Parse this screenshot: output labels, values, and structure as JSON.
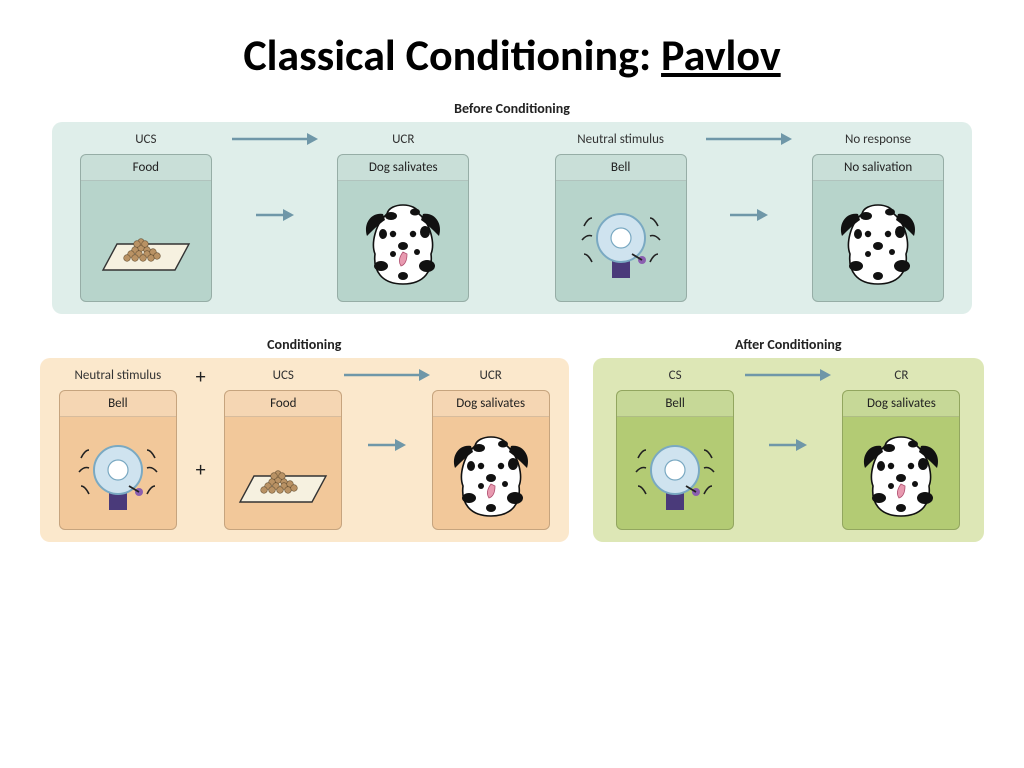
{
  "title_prefix": "Classical Conditioning: ",
  "title_underlined": "Pavlov",
  "colors": {
    "before_bg": "#dfeeea",
    "before_card": "#b7d4cb",
    "cond_bg": "#fbe8cc",
    "cond_card": "#f2c89a",
    "after_bg": "#dde7b6",
    "after_card": "#b3cb74",
    "arrow": "#6f97a8",
    "bell_body": "#4a3a7a",
    "bell_ring": "#cfe3ef",
    "bell_ring_stroke": "#7aa9c2",
    "food": "#b99264",
    "plate": "#f6f1e0",
    "tongue": "#e89ab0"
  },
  "sections": {
    "before": {
      "title": "Before Conditioning",
      "cells": [
        {
          "top": "UCS",
          "card": "Food",
          "img": "food"
        },
        {
          "top": "UCR",
          "card": "Dog salivates",
          "img": "dog_tongue"
        },
        {
          "top": "Neutral stimulus",
          "card": "Bell",
          "img": "bell"
        },
        {
          "top": "No response",
          "card": "No salivation",
          "img": "dog"
        }
      ]
    },
    "conditioning": {
      "title": "Conditioning",
      "cells": [
        {
          "top": "Neutral stimulus",
          "card": "Bell",
          "img": "bell"
        },
        {
          "top": "UCS",
          "card": "Food",
          "img": "food"
        },
        {
          "top": "UCR",
          "card": "Dog salivates",
          "img": "dog_tongue"
        }
      ]
    },
    "after": {
      "title": "After Conditioning",
      "cells": [
        {
          "top": "CS",
          "card": "Bell",
          "img": "bell"
        },
        {
          "top": "CR",
          "card": "Dog salivates",
          "img": "dog_tongue"
        }
      ]
    }
  }
}
